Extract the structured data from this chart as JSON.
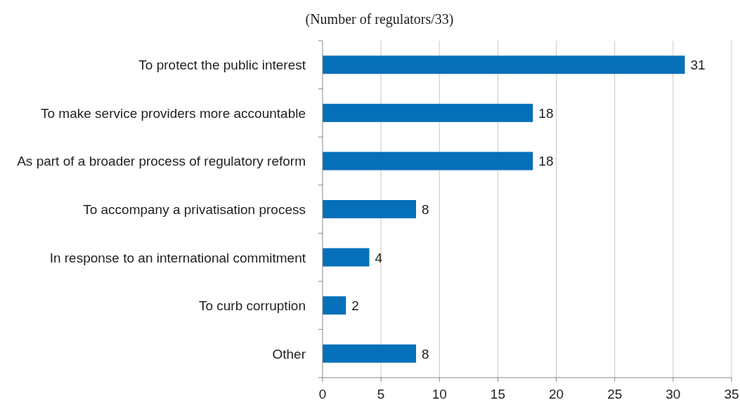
{
  "chart_data": {
    "type": "bar",
    "orientation": "horizontal",
    "title": "(Number of regulators/33)",
    "categories": [
      "To protect the public interest",
      "To make service providers more accountable",
      "As part of a broader process of regulatory reform",
      "To accompany a privatisation process",
      "In response to an international commitment",
      "To curb corruption",
      "Other"
    ],
    "values": [
      31,
      18,
      18,
      8,
      4,
      2,
      8
    ],
    "color": "#0570b9",
    "data_labels": true,
    "xlim": [
      0,
      35
    ],
    "xticks": [
      0,
      5,
      10,
      15,
      20,
      25,
      30,
      35
    ],
    "grid": "x"
  }
}
